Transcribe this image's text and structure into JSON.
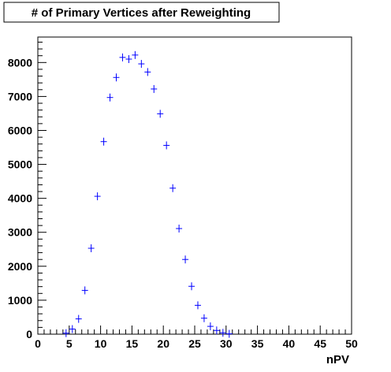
{
  "chart_data": {
    "type": "scatter",
    "title": "# of Primary Vertices after Reweighting",
    "xlabel": "nPV",
    "ylabel": "",
    "xlim": [
      0,
      50
    ],
    "ylim": [
      0,
      8750
    ],
    "x_ticks": [
      0,
      5,
      10,
      15,
      20,
      25,
      30,
      35,
      40,
      45,
      50
    ],
    "y_ticks": [
      0,
      1000,
      2000,
      3000,
      4000,
      5000,
      6000,
      7000,
      8000
    ],
    "bin_width": 1,
    "grid": false,
    "marker_color": "#0000ff",
    "series": [
      {
        "x": [
          0.5,
          1.5,
          2.5,
          3.5,
          4.5,
          5.5,
          6.5,
          7.5,
          8.5,
          9.5,
          10.5,
          11.5,
          12.5,
          13.5,
          14.5,
          15.5,
          16.5,
          17.5,
          18.5,
          19.5,
          20.5,
          21.5,
          22.5,
          23.5,
          24.5,
          25.5,
          26.5,
          27.5,
          28.5,
          29.5,
          30.5
        ],
        "values": [
          0,
          0,
          0,
          0,
          30,
          150,
          450,
          1290,
          2530,
          4060,
          5670,
          6970,
          7560,
          8150,
          8100,
          8220,
          7960,
          7720,
          7220,
          6490,
          5560,
          4300,
          3110,
          2200,
          1410,
          850,
          470,
          230,
          110,
          40,
          10
        ]
      }
    ]
  }
}
